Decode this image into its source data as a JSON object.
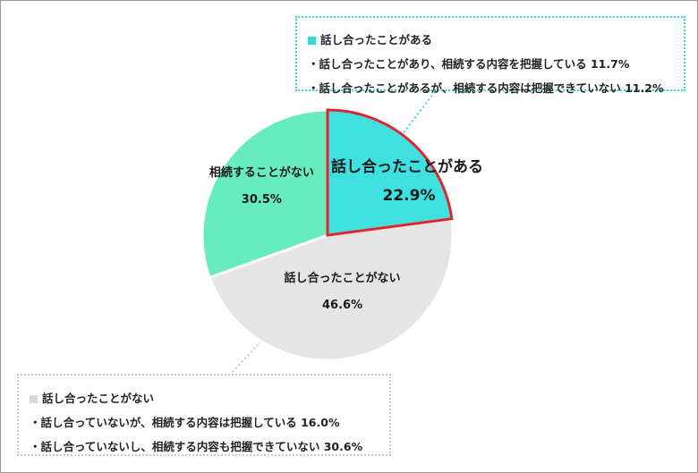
{
  "chart_data": {
    "type": "pie",
    "slices": [
      {
        "label": "話し合ったことがある",
        "value": 22.9,
        "display": "22.9%",
        "color": "#3ee0e0",
        "highlight": true
      },
      {
        "label": "話し合ったことがない",
        "value": 46.6,
        "display": "46.6%",
        "color": "#e5e5e5",
        "highlight": false
      },
      {
        "label": "相続することがない",
        "value": 30.5,
        "display": "30.5%",
        "color": "#67ecbf",
        "highlight": false
      }
    ],
    "highlight_border_color": "#e0242b"
  },
  "callouts": {
    "top": {
      "title": "話し合ったことがある",
      "marker_color": "#3fd3da",
      "lines": [
        "・話し合ったことがあり、相続する内容を把握している 11.7%",
        "・話し合ったことがあるが、相続する内容は把握できていない 11.2%"
      ]
    },
    "bottom": {
      "title": "話し合ったことがない",
      "marker_color": "#d9d9d9",
      "lines": [
        "・話し合っていないが、相続する内容は把握している 16.0%",
        "・話し合っていないし、相続する内容も把握できていない 30.6%"
      ]
    }
  }
}
